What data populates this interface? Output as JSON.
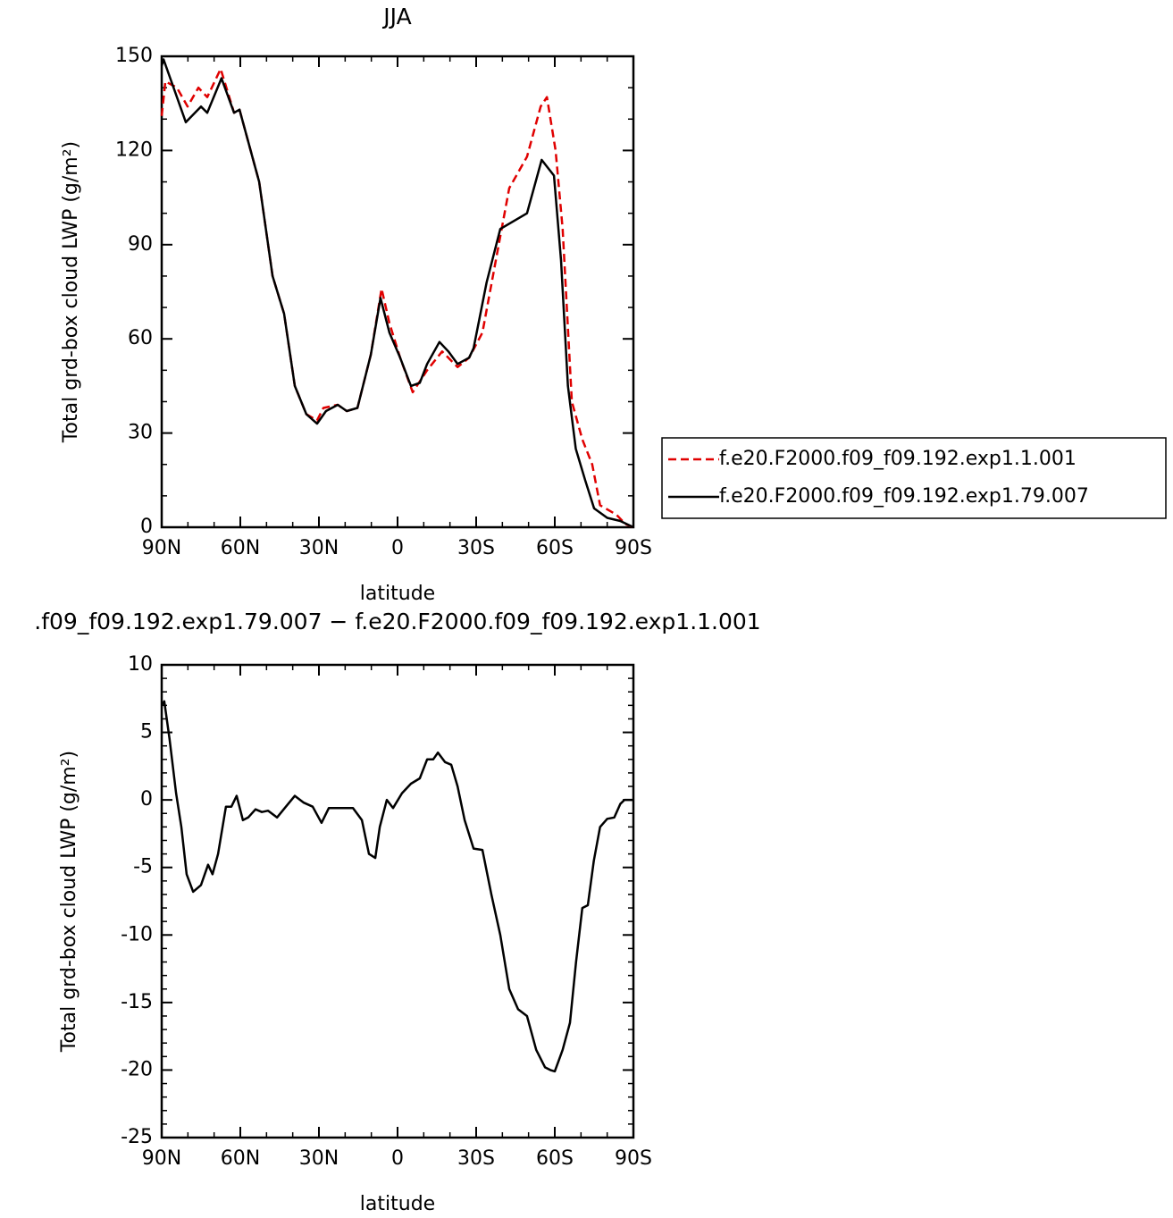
{
  "chart_data": [
    {
      "type": "line",
      "title": "JJA",
      "xlabel": "latitude",
      "ylabel": "Total grd-box cloud LWP (g/m²)",
      "xlim": [
        90,
        -90
      ],
      "xticks": [
        {
          "value": 90,
          "label": "90N"
        },
        {
          "value": 60,
          "label": "60N"
        },
        {
          "value": 30,
          "label": "30N"
        },
        0,
        {
          "value": -30,
          "label": "30S"
        },
        {
          "value": -60,
          "label": "60S"
        },
        {
          "value": -90,
          "label": "90S"
        }
      ],
      "ylim": [
        0,
        150
      ],
      "yticks": [
        0,
        30,
        60,
        90,
        120,
        150
      ],
      "legend": "right",
      "series": [
        {
          "name": "f.e20.F2000.f09_f09.192.exp1.1.001",
          "color": "#e00000",
          "dash": "dashed",
          "x": [
            90,
            88.6,
            84.2,
            80.1,
            76,
            72.6,
            67.5,
            62.4,
            60.3,
            52.8,
            47.7,
            43.3,
            39.2,
            34.8,
            30.7,
            28.3,
            22.8,
            19.4,
            15.3,
            10.2,
            6.1,
            3.1,
            -1,
            -5.8,
            -11.3,
            -17,
            -22.9,
            -27.3,
            -32.4,
            -37.5,
            -42.6,
            -49.4,
            -54.6,
            -57,
            -60.3,
            -63,
            -66.5,
            -70.5,
            -74.3,
            -77.3,
            -83.5,
            -87,
            -90
          ],
          "values": [
            131,
            142,
            140,
            134,
            140,
            137,
            146,
            132,
            133,
            110,
            80,
            68,
            45,
            36,
            34,
            38,
            39,
            37,
            38,
            55,
            76,
            65,
            54,
            43,
            50,
            56,
            51,
            54,
            62,
            85,
            108,
            118,
            134,
            137,
            120,
            95,
            40,
            28,
            20,
            7,
            4,
            1,
            0
          ]
        },
        {
          "name": "f.e20.F2000.f09_f09.192.exp1.79.007",
          "color": "#000000",
          "dash": "solid",
          "x": [
            90,
            89.3,
            80.8,
            75,
            72.6,
            67.2,
            62.4,
            60.3,
            52.8,
            47.7,
            43.3,
            39.2,
            34.8,
            30.7,
            27.3,
            22.8,
            19.4,
            15.3,
            10.2,
            6.5,
            3.1,
            -1,
            -5.1,
            -8.5,
            -11.3,
            -16,
            -19.4,
            -22.9,
            -27.3,
            -29,
            -34,
            -39.2,
            -49.4,
            -55,
            -59.7,
            -62.4,
            -65,
            -68,
            -71.6,
            -75,
            -80,
            -85,
            -90
          ],
          "values": [
            147,
            149,
            129,
            134,
            132,
            143,
            132,
            133,
            110,
            80,
            68,
            45,
            36,
            33,
            37,
            39,
            37,
            38,
            55,
            73,
            62,
            54,
            45,
            46,
            52,
            59,
            56,
            52,
            54,
            57,
            78,
            95,
            100,
            117,
            112,
            85,
            45,
            25,
            15,
            6,
            3,
            2,
            0
          ]
        }
      ]
    },
    {
      "type": "line",
      "title": ".f09_f09.192.exp1.79.007 − f.e20.F2000.f09_f09.192.exp1.1.001",
      "xlabel": "latitude",
      "ylabel": "Total grd-box cloud LWP (g/m²)",
      "xlim": [
        90,
        -90
      ],
      "xticks": [
        {
          "value": 90,
          "label": "90N"
        },
        {
          "value": 60,
          "label": "60N"
        },
        {
          "value": 30,
          "label": "30N"
        },
        0,
        {
          "value": -30,
          "label": "30S"
        },
        {
          "value": -60,
          "label": "60S"
        },
        {
          "value": -90,
          "label": "90S"
        }
      ],
      "ylim": [
        -25,
        10
      ],
      "yticks": [
        -25,
        -20,
        -15,
        -10,
        -5,
        0,
        5,
        10
      ],
      "series": [
        {
          "color": "#000000",
          "dash": "solid",
          "x": [
            90,
            89,
            87,
            84.5,
            82.5,
            80.5,
            78,
            75,
            72.3,
            70.6,
            68.5,
            65.5,
            63.4,
            61.4,
            59,
            57,
            54.2,
            51.8,
            49.4,
            46,
            42.6,
            39.2,
            35.8,
            32.4,
            29,
            26.2,
            22.2,
            17,
            13.6,
            10.9,
            8.5,
            6.8,
            4.1,
            1.7,
            -1.7,
            -5.1,
            -8.5,
            -11.3,
            -13.6,
            -15.4,
            -18.1,
            -20.5,
            -22.9,
            -25.6,
            -29,
            -32.4,
            -35.8,
            -39.2,
            -42.6,
            -46,
            -49.4,
            -52.9,
            -56.3,
            -58.3,
            -60,
            -63,
            -65.8,
            -68.1,
            -70.5,
            -72.6,
            -74.9,
            -77.3,
            -80,
            -82.7,
            -85,
            -86.6,
            -90
          ],
          "values": [
            7,
            7.3,
            4.5,
            0.5,
            -2,
            -5.5,
            -6.8,
            -6.3,
            -4.8,
            -5.5,
            -4,
            -0.5,
            -0.5,
            0.3,
            -1.5,
            -1.3,
            -0.7,
            -0.9,
            -0.8,
            -1.3,
            -0.5,
            0.3,
            -0.2,
            -0.5,
            -1.7,
            -0.6,
            -0.6,
            -0.6,
            -1.5,
            -4,
            -4.3,
            -2,
            0,
            -0.6,
            0.5,
            1.2,
            1.6,
            3,
            3,
            3.5,
            2.8,
            2.6,
            1,
            -1.5,
            -3.6,
            -3.7,
            -7,
            -10,
            -14,
            -15.5,
            -16,
            -18.5,
            -19.8,
            -20,
            -20.1,
            -18.5,
            -16.5,
            -12,
            -8,
            -7.8,
            -4.5,
            -2,
            -1.4,
            -1.3,
            -0.3,
            0,
            0
          ]
        }
      ]
    }
  ]
}
